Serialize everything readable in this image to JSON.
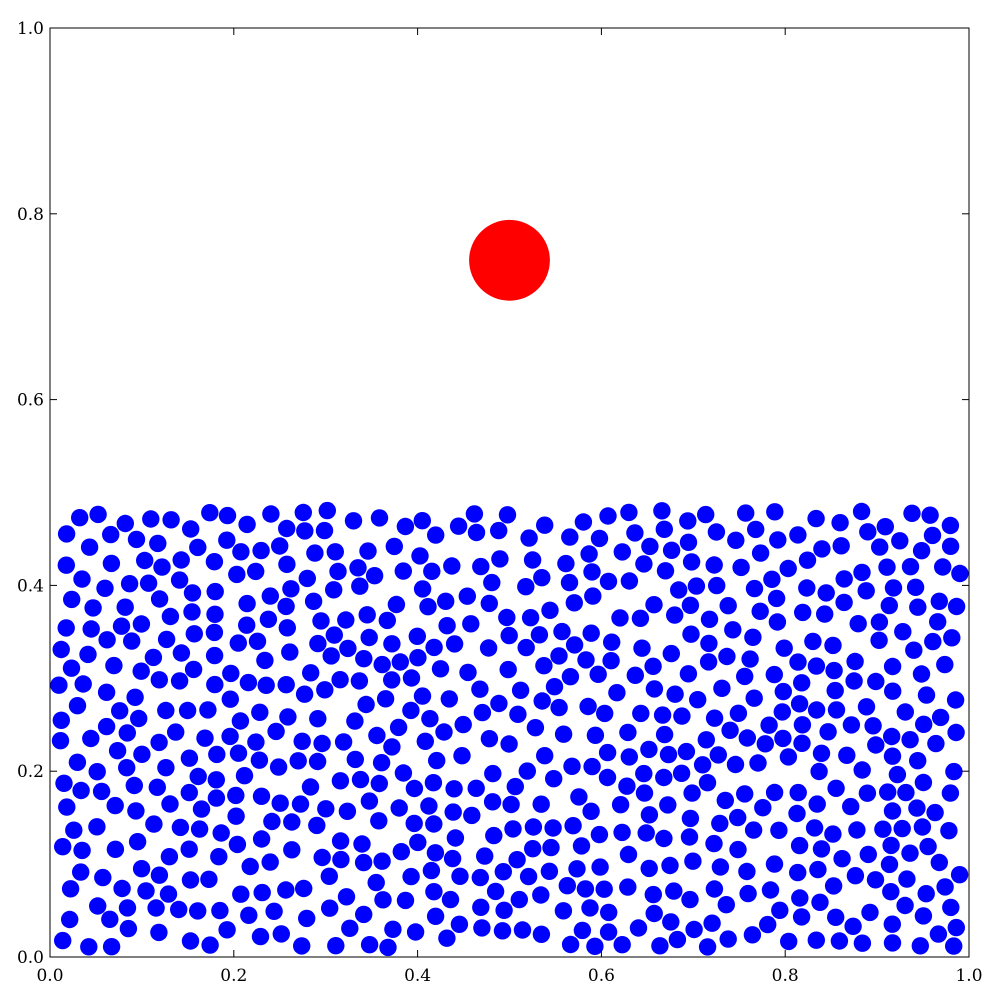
{
  "chart_data": {
    "type": "scatter",
    "title": "",
    "xlabel": "",
    "ylabel": "",
    "xlim": [
      0.0,
      1.0
    ],
    "ylim": [
      0.0,
      1.0
    ],
    "grid": false,
    "x_ticks": [
      "0.0",
      "0.2",
      "0.4",
      "0.6",
      "0.8",
      "1.0"
    ],
    "y_ticks": [
      "0.0",
      "0.2",
      "0.4",
      "0.6",
      "0.8",
      "1.0"
    ],
    "series": [
      {
        "color": "#0000ff",
        "marker_radius": 0.0095,
        "count": 1200,
        "x_range": [
          0.0,
          1.0
        ],
        "y_range": [
          0.0,
          0.49
        ],
        "points": []
      },
      {
        "color": "#ff0000",
        "marker_radius": 0.044,
        "points": [
          [
            0.5,
            0.75
          ]
        ]
      }
    ]
  }
}
